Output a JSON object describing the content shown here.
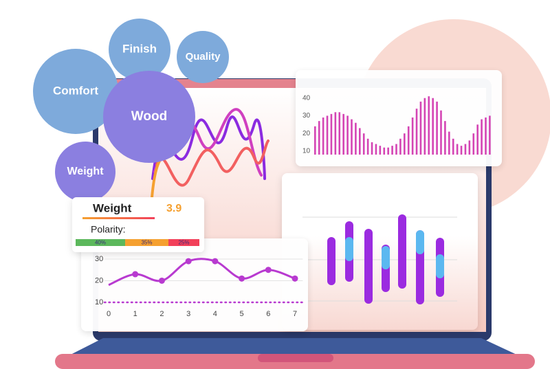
{
  "bubbles": [
    {
      "label": "Finish"
    },
    {
      "label": "Quality"
    },
    {
      "label": "Comfort"
    },
    {
      "label": "Wood"
    },
    {
      "label": "Weight"
    }
  ],
  "tooltip": {
    "title": "Weight",
    "score": 3.9,
    "subtitle": "Polarity:",
    "values": [
      40,
      35,
      25
    ],
    "value_labels": [
      "40%",
      "35%",
      "25%"
    ],
    "colors": [
      "#5cb85c",
      "#f5a030",
      "#f2405a"
    ]
  },
  "bar_chart": {
    "type": "bar",
    "ylim": [
      8,
      43
    ],
    "yticks": [
      10,
      20,
      30,
      40
    ],
    "color": "#d444b4",
    "values": [
      24,
      27,
      29,
      30,
      31,
      32,
      32,
      31,
      30,
      28,
      26,
      23,
      20,
      17,
      15,
      14,
      13,
      12,
      12,
      13,
      14,
      17,
      20,
      24,
      29,
      34,
      38,
      40,
      41,
      40,
      38,
      33,
      27,
      21,
      17,
      14,
      13,
      14,
      16,
      20,
      25,
      28,
      29,
      30
    ]
  },
  "line_chart": {
    "type": "line",
    "x": [
      0,
      1,
      2,
      3,
      4,
      5,
      6,
      7
    ],
    "xlim": [
      0,
      7
    ],
    "xticks": [
      0,
      1,
      2,
      3,
      4,
      5,
      6,
      7
    ],
    "ylim": [
      5,
      33
    ],
    "yticks": [
      10,
      20,
      30
    ],
    "color": "#b83ad0",
    "values": [
      18,
      23,
      20,
      29,
      29,
      21,
      25,
      21
    ]
  }
}
